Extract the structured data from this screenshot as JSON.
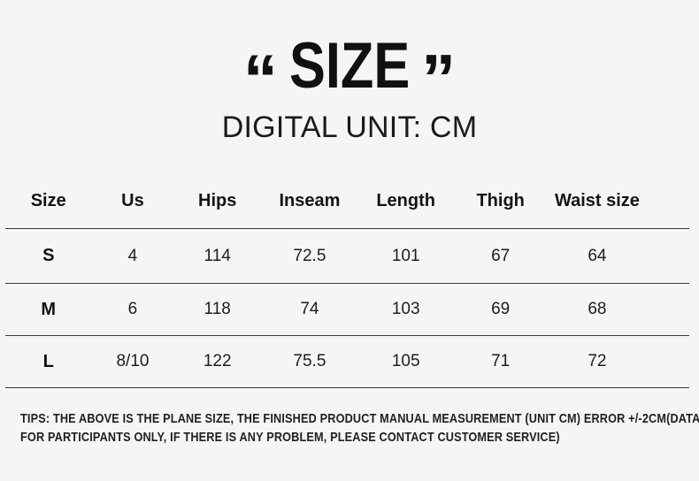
{
  "colors": {
    "background": "#f5f5f5",
    "text": "#1a1a1a",
    "divider_line": "#3a3a3a"
  },
  "title": {
    "open_quote": "“",
    "text": "SIZE",
    "close_quote": "”"
  },
  "subtitle": "DIGITAL UNIT: CM",
  "table": {
    "headers": [
      "Size",
      "Us",
      "Hips",
      "Inseam",
      "Length",
      "Thigh",
      "Waist size"
    ],
    "rows": [
      {
        "size": "S",
        "values": [
          "4",
          "114",
          "72.5",
          "101",
          "67",
          "64"
        ]
      },
      {
        "size": "M",
        "values": [
          "6",
          "118",
          "74",
          "103",
          "69",
          "68"
        ]
      },
      {
        "size": "L",
        "values": [
          "8/10",
          "122",
          "75.5",
          "105",
          "71",
          "72"
        ]
      }
    ]
  },
  "tips": {
    "line1": "TIPS: THE ABOVE IS THE PLANE SIZE, THE FINISHED PRODUCT MANUAL MEASUREMENT (UNIT CM) ERROR +/-2CM(DATA",
    "line2": "FOR PARTICIPANTS ONLY, IF THERE IS ANY PROBLEM, PLEASE CONTACT CUSTOMER SERVICE)"
  },
  "chart_data": {
    "type": "table",
    "title": "“SIZE”",
    "subtitle": "DIGITAL UNIT: CM",
    "unit": "cm",
    "columns": [
      "Size",
      "Us",
      "Hips",
      "Inseam",
      "Length",
      "Thigh",
      "Waist size"
    ],
    "rows": [
      [
        "S",
        "4",
        "114",
        "72.5",
        "101",
        "67",
        "64"
      ],
      [
        "M",
        "6",
        "118",
        "74",
        "103",
        "69",
        "68"
      ],
      [
        "L",
        "8/10",
        "122",
        "75.5",
        "105",
        "71",
        "72"
      ]
    ],
    "notes": "TIPS: THE ABOVE IS THE PLANE SIZE, THE FINISHED PRODUCT MANUAL MEASUREMENT (UNIT CM) ERROR +/-2CM(DATA FOR PARTICIPANTS ONLY, IF THERE IS ANY PROBLEM, PLEASE CONTACT CUSTOMER SERVICE)"
  }
}
